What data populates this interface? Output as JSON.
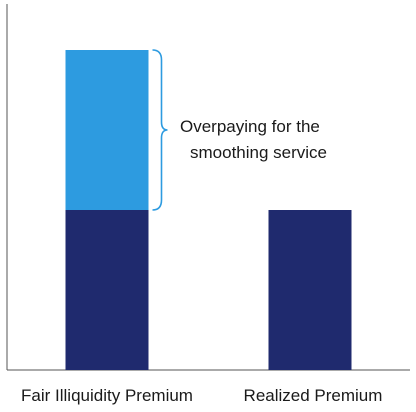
{
  "chart_data": {
    "type": "bar",
    "stacked": true,
    "categories": [
      "Fair Illiquidity Premium",
      "Realized Premium"
    ],
    "series": [
      {
        "values": [
          1.0,
          1.0
        ],
        "color": "#1f2a6e"
      },
      {
        "values": [
          1.0,
          0
        ],
        "color": "#2d9be0"
      }
    ],
    "ylim": [
      0,
      2.0
    ],
    "grid": false,
    "annotation": {
      "lines": [
        "Overpaying for the",
        "smoothing service"
      ],
      "spans_series": 1,
      "category_index": 0
    }
  }
}
